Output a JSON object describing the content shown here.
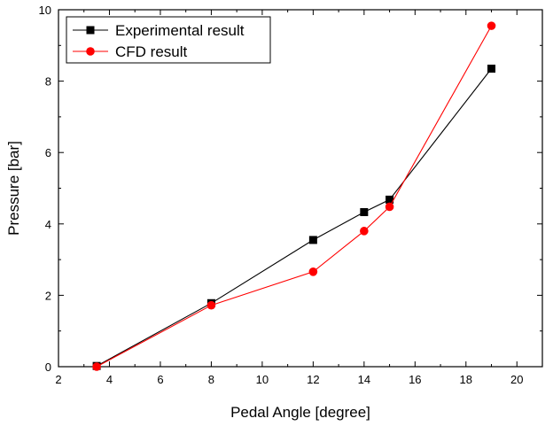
{
  "chart_data": {
    "type": "line",
    "title": "",
    "xlabel": "Pedal Angle [degree]",
    "ylabel": "Pressure [bar]",
    "xlim": [
      2,
      21
    ],
    "ylim": [
      0,
      10
    ],
    "x_ticks": [
      2,
      4,
      6,
      8,
      10,
      12,
      14,
      16,
      18,
      20
    ],
    "y_ticks": [
      0,
      2,
      4,
      6,
      8,
      10
    ],
    "grid": false,
    "legend_position": "top-left",
    "series": [
      {
        "name": "Experimental result",
        "color": "#000000",
        "marker": "square",
        "x": [
          3.5,
          8,
          12,
          14,
          15,
          19
        ],
        "y": [
          0.02,
          1.78,
          3.55,
          4.33,
          4.68,
          8.35
        ]
      },
      {
        "name": "CFD result",
        "color": "#ff0000",
        "marker": "circle",
        "x": [
          3.5,
          8,
          12,
          14,
          15,
          19
        ],
        "y": [
          0.0,
          1.72,
          2.66,
          3.8,
          4.48,
          9.55
        ]
      }
    ]
  }
}
